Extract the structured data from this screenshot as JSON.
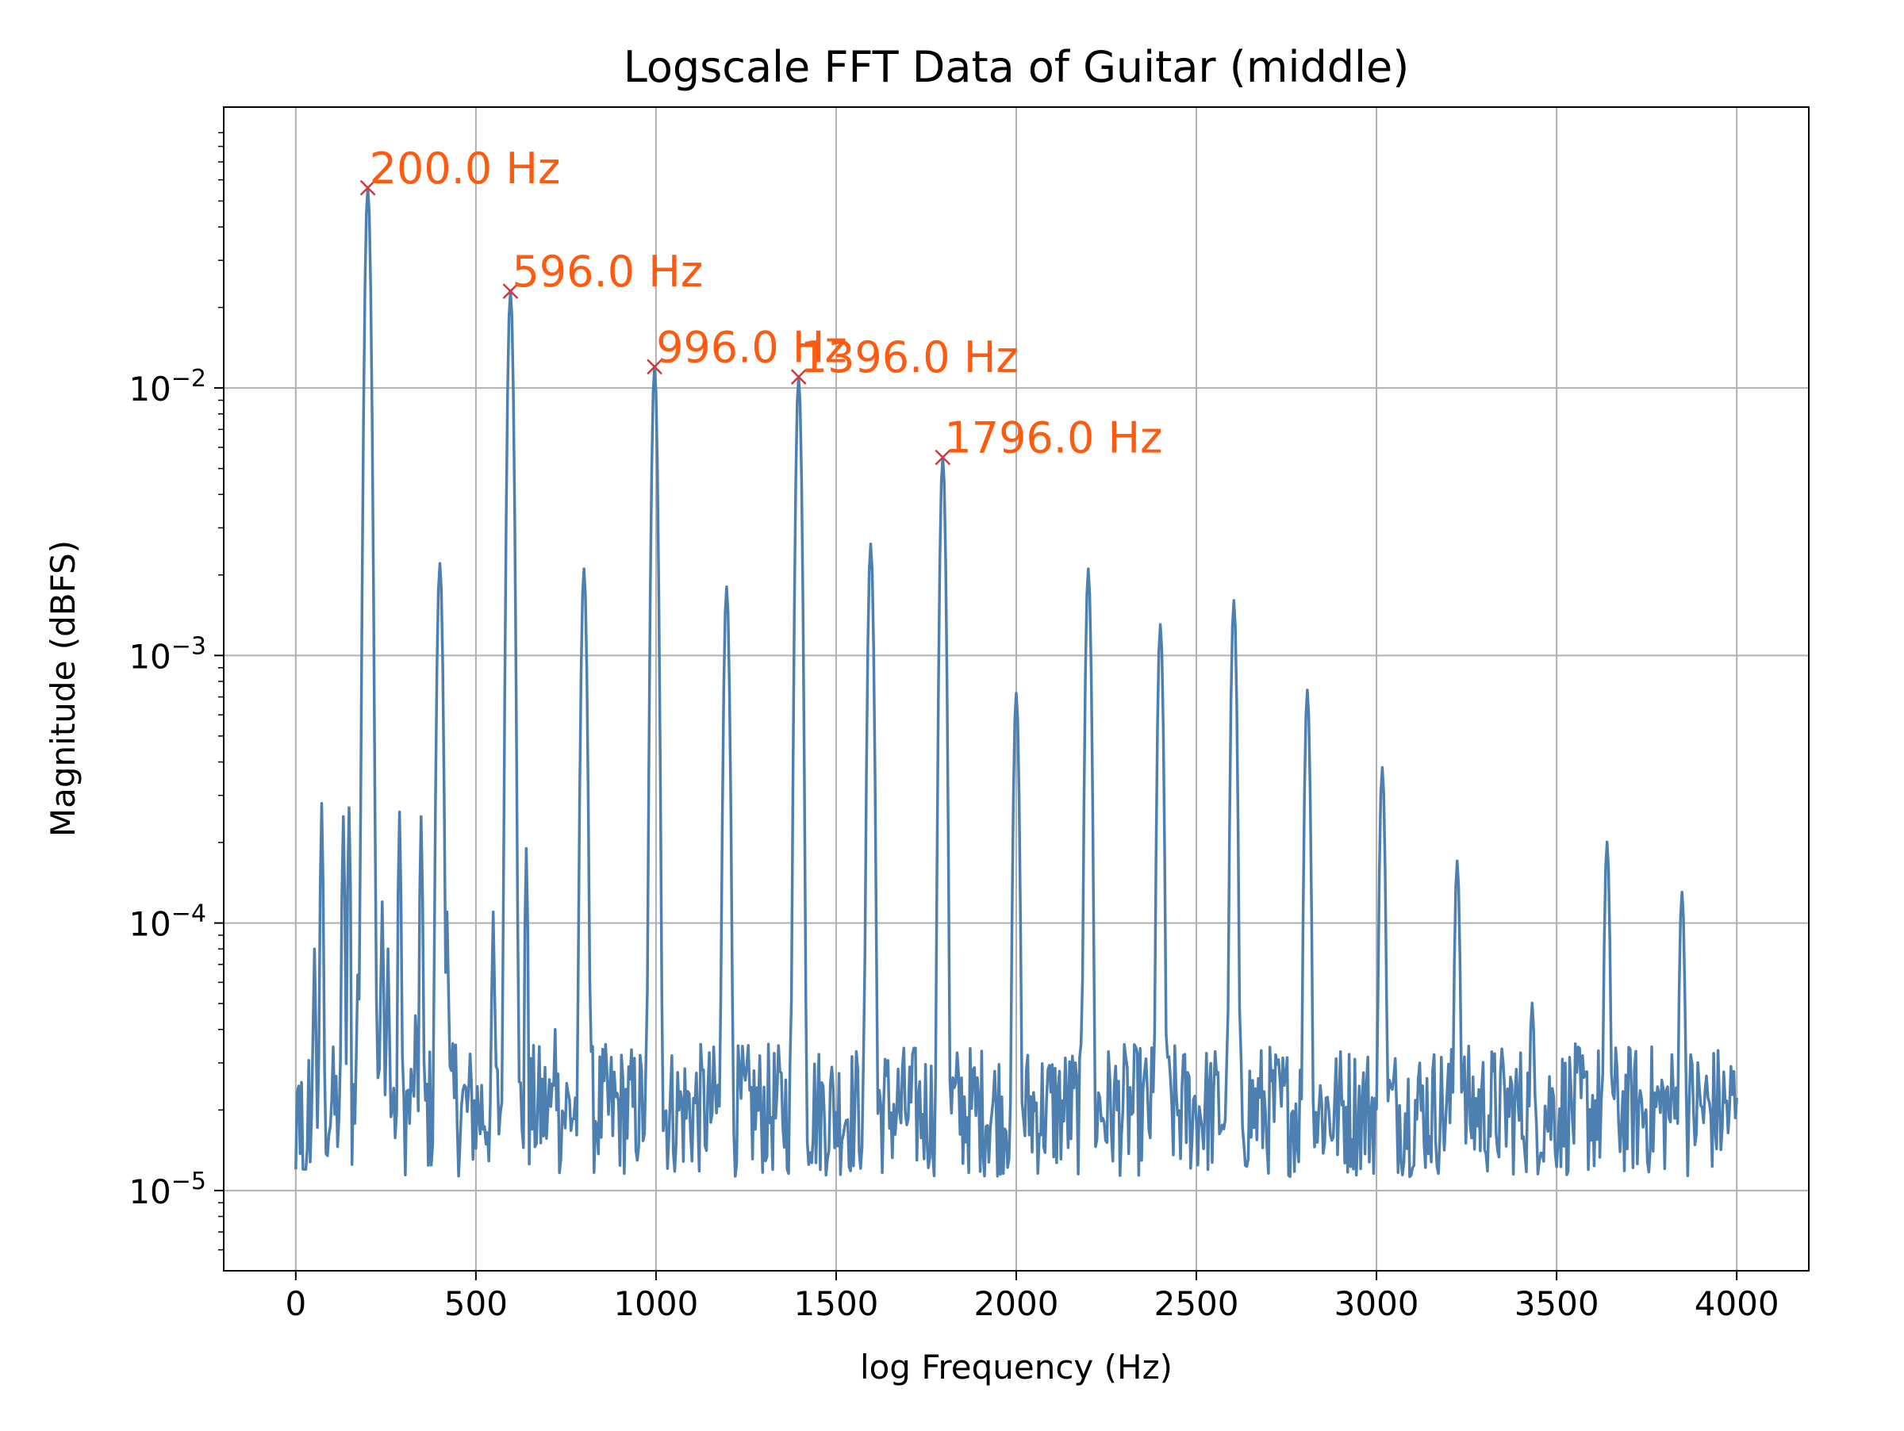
{
  "chart_data": {
    "type": "line",
    "title": "Logscale FFT Data of Guitar (middle)",
    "xlabel": "log Frequency (Hz)",
    "ylabel": "Magnitude (dBFS)",
    "xlim": [
      -200,
      4200
    ],
    "ylim_log10": [
      -5.3,
      -0.95
    ],
    "y_scale": "log",
    "grid": true,
    "x_ticks": [
      0,
      500,
      1000,
      1500,
      2000,
      2500,
      3000,
      3500,
      4000
    ],
    "x_tick_labels": [
      "0",
      "500",
      "1000",
      "1500",
      "2000",
      "2500",
      "3000",
      "3500",
      "4000"
    ],
    "y_ticks_exp": [
      -2,
      -3,
      -4,
      -5
    ],
    "y_tick_labels": [
      {
        "base": "10",
        "exp": "−2"
      },
      {
        "base": "10",
        "exp": "−3"
      },
      {
        "base": "10",
        "exp": "−4"
      },
      {
        "base": "10",
        "exp": "−5"
      }
    ],
    "series": [
      {
        "color": "#4d80b0",
        "x_step": 4,
        "noise_floor": 2e-05,
        "peaks": [
          {
            "x": 200,
            "y": 0.056
          },
          {
            "x": 400,
            "y": 0.0022
          },
          {
            "x": 596,
            "y": 0.023
          },
          {
            "x": 800,
            "y": 0.0021
          },
          {
            "x": 996,
            "y": 0.012
          },
          {
            "x": 1196,
            "y": 0.0018
          },
          {
            "x": 1396,
            "y": 0.011
          },
          {
            "x": 1596,
            "y": 0.0026
          },
          {
            "x": 1796,
            "y": 0.0055
          },
          {
            "x": 2000,
            "y": 0.00072
          },
          {
            "x": 2200,
            "y": 0.0021
          },
          {
            "x": 2400,
            "y": 0.0013
          },
          {
            "x": 2604,
            "y": 0.0016
          },
          {
            "x": 2808,
            "y": 0.00074
          },
          {
            "x": 3016,
            "y": 0.00038
          },
          {
            "x": 3224,
            "y": 0.00017
          },
          {
            "x": 3432,
            "y": 5e-05
          },
          {
            "x": 3640,
            "y": 0.0002
          },
          {
            "x": 3848,
            "y": 0.00013
          }
        ],
        "low_band": [
          {
            "x": 0,
            "y": 2e-05
          },
          {
            "x": 16,
            "y": 8.5e-06
          },
          {
            "x": 28,
            "y": 8.5e-06
          },
          {
            "x": 48,
            "y": 1.5e-05
          },
          {
            "x": 52,
            "y": 8e-05
          },
          {
            "x": 72,
            "y": 0.00028
          },
          {
            "x": 100,
            "y": 2.2e-05
          },
          {
            "x": 132,
            "y": 0.00025
          },
          {
            "x": 148,
            "y": 0.00027
          },
          {
            "x": 172,
            "y": 6.4e-05
          },
          {
            "x": 212,
            "y": 0.0015
          },
          {
            "x": 240,
            "y": 0.00012
          },
          {
            "x": 256,
            "y": 8e-05
          },
          {
            "x": 288,
            "y": 0.00026
          },
          {
            "x": 332,
            "y": 4.5e-05
          },
          {
            "x": 348,
            "y": 0.00025
          },
          {
            "x": 420,
            "y": 0.00011
          },
          {
            "x": 444,
            "y": 3.5e-05
          },
          {
            "x": 548,
            "y": 0.00011
          },
          {
            "x": 640,
            "y": 0.00019
          },
          {
            "x": 720,
            "y": 4e-05
          }
        ]
      }
    ],
    "markers": [
      {
        "x": 200,
        "y": 0.056,
        "label": "200.0 Hz"
      },
      {
        "x": 596,
        "y": 0.023,
        "label": "596.0 Hz"
      },
      {
        "x": 996,
        "y": 0.012,
        "label": "996.0 Hz"
      },
      {
        "x": 1396,
        "y": 0.011,
        "label": "1396.0 Hz"
      },
      {
        "x": 1796,
        "y": 0.0055,
        "label": "1796.0 Hz"
      }
    ],
    "marker_color": "#d03a3a",
    "annotation_color": "#ff5a0f"
  }
}
